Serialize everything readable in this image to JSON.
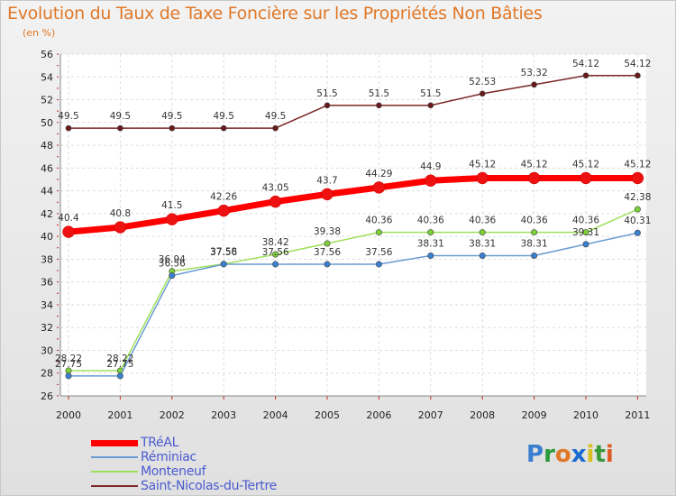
{
  "chart_data": {
    "type": "line",
    "title": "Evolution du Taux de Taxe Foncière sur les Propriétés Non Bâties",
    "ylabel": "(en %)",
    "xlabel": "",
    "categories": [
      "2000",
      "2001",
      "2002",
      "2003",
      "2004",
      "2005",
      "2006",
      "2007",
      "2008",
      "2009",
      "2010",
      "2011"
    ],
    "ylim": [
      26,
      56
    ],
    "yticks": [
      "26",
      "28",
      "30",
      "32",
      "34",
      "36",
      "38",
      "40",
      "42",
      "44",
      "46",
      "48",
      "50",
      "52",
      "54",
      "56"
    ],
    "grid": true,
    "series": [
      {
        "name": "TRéAL",
        "color": "#ff0000",
        "point_color": "#ee1111",
        "values": [
          40.4,
          40.8,
          41.5,
          42.26,
          43.05,
          43.7,
          44.29,
          44.9,
          45.12,
          45.12,
          45.12,
          45.12
        ],
        "labels": [
          "40.4",
          "40.8",
          "41.5",
          "42.26",
          "43.05",
          "43.7",
          "44.29",
          "44.9",
          "45.12",
          "45.12",
          "45.12",
          "45.12"
        ]
      },
      {
        "name": "Réminiac",
        "color": "#6a9bd1",
        "point_color": "#3a7fd0",
        "values": [
          27.75,
          27.75,
          36.56,
          37.56,
          37.56,
          37.56,
          37.56,
          38.31,
          38.31,
          38.31,
          39.31,
          40.31
        ],
        "labels": [
          "27.75",
          "27.75",
          "36.56",
          "37.56",
          "37.56",
          "37.56",
          "37.56",
          "38.31",
          "38.31",
          "38.31",
          "39.31",
          "40.31"
        ]
      },
      {
        "name": "Monteneuf",
        "color": "#9ee05a",
        "point_color": "#7ccf3a",
        "values": [
          28.22,
          28.22,
          36.94,
          37.58,
          38.42,
          39.38,
          40.36,
          40.36,
          40.36,
          40.36,
          40.36,
          42.38
        ],
        "labels": [
          "28.22",
          "28.22",
          "36.94",
          "37.58",
          "38.42",
          "39.38",
          "40.36",
          "40.36",
          "40.36",
          "40.36",
          "40.36",
          "42.38"
        ]
      },
      {
        "name": "Saint-Nicolas-du-Tertre",
        "color": "#7a2626",
        "point_color": "#6a1a1a",
        "values": [
          49.5,
          49.5,
          49.5,
          49.5,
          49.5,
          51.5,
          51.5,
          51.5,
          52.53,
          53.32,
          54.12,
          54.12
        ],
        "labels": [
          "49.5",
          "49.5",
          "49.5",
          "49.5",
          "49.5",
          "51.5",
          "51.5",
          "51.5",
          "52.53",
          "53.32",
          "54.12",
          "54.12"
        ]
      }
    ],
    "legend_order": [
      0,
      1,
      2,
      3
    ]
  },
  "logo": {
    "text": "Proxiti",
    "letters": [
      "P",
      "r",
      "o",
      "x",
      "i",
      "t",
      "i"
    ],
    "colors": [
      "#3a7fd0",
      "#2a9a3a",
      "#e07828",
      "#1a6ad0",
      "#d8c020",
      "#3a9a3a",
      "#e05a28"
    ]
  }
}
